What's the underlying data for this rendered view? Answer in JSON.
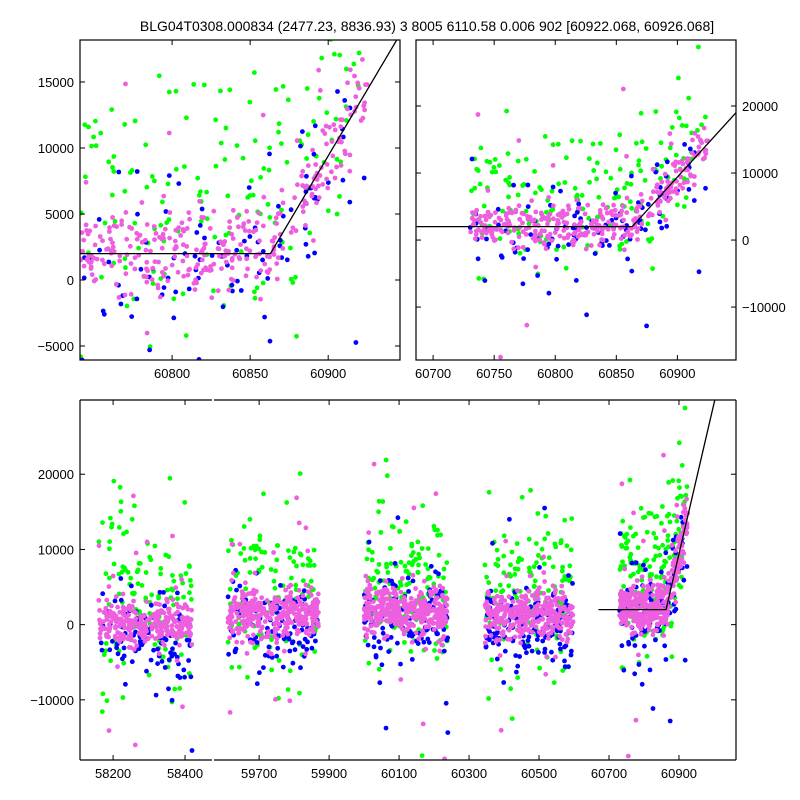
{
  "chart_data": {
    "type": "scatter",
    "title": "BLG04T0308.000834 (2477.23, 8836.93)   3 8005 6110.58 0.006 902 [60922.068, 60926.068]",
    "series_colors": {
      "green": "#00ff00",
      "blue": "#0000ff",
      "violet": "#ee5fdf"
    },
    "model_line": {
      "type": "broken-linear",
      "baseline": 2000,
      "t_break": 60863,
      "slope_per_day": 200
    },
    "seasons": [
      {
        "t_range": [
          58160,
          58420
        ],
        "base": 0,
        "n": 520
      },
      {
        "t_range": [
          59610,
          59870
        ],
        "base": 1500,
        "n": 560
      },
      {
        "t_range": [
          60000,
          60240
        ],
        "base": 1800,
        "n": 620
      },
      {
        "t_range": [
          60345,
          60600
        ],
        "base": 1200,
        "n": 600
      },
      {
        "t_range": [
          60730,
          60925
        ],
        "base": 2000,
        "n": 620,
        "model": true
      }
    ],
    "noise": {
      "violet": {
        "mean": 0,
        "sd": 1600,
        "fraction": 0.55
      },
      "blue": {
        "mean": -1500,
        "sd": 3000,
        "fraction": 0.2
      },
      "green": {
        "mean": 3000,
        "sd": 5500,
        "fraction": 0.25
      }
    },
    "panels": [
      {
        "name": "top-left",
        "xlim": [
          60741,
          60946
        ],
        "ylim": [
          -6060,
          18180
        ],
        "xticks": [
          "60800",
          "60850",
          "60900"
        ],
        "xtick_values": [
          60800,
          60850,
          60900
        ],
        "yticks": [
          "−5000",
          "0",
          "5000",
          "10000",
          "15000"
        ],
        "ytick_values": [
          -5000,
          0,
          5000,
          10000,
          15000
        ],
        "ylabel_side": "left"
      },
      {
        "name": "top-right",
        "xlim": [
          60686,
          60948
        ],
        "ylim": [
          -17900,
          29850
        ],
        "xticks": [
          "60700",
          "60750",
          "60800",
          "60850",
          "60900"
        ],
        "xtick_values": [
          60700,
          60750,
          60800,
          60850,
          60900
        ],
        "yticks": [
          "−10000",
          "0",
          "10000",
          "20000"
        ],
        "ytick_values": [
          -10000,
          0,
          10000,
          20000
        ],
        "ylabel_side": "right"
      },
      {
        "name": "bottom-left-segment",
        "xlim": [
          58108,
          58475
        ],
        "ylim": [
          -18000,
          29870
        ],
        "xticks": [
          "58200",
          "58400"
        ],
        "xtick_values": [
          58200,
          58400
        ],
        "yticks": [
          "−10000",
          "0",
          "10000",
          "20000"
        ],
        "ytick_values": [
          -10000,
          0,
          10000,
          20000
        ],
        "ylabel_side": "left"
      },
      {
        "name": "bottom-right-segment",
        "xlim": [
          59571,
          61063
        ],
        "ylim": [
          -18000,
          29870
        ],
        "xticks": [
          "59700",
          "59900",
          "60100",
          "60300",
          "60500",
          "60700",
          "60900"
        ],
        "xtick_values": [
          59700,
          59900,
          60100,
          60300,
          60500,
          60700,
          60900
        ],
        "yticks": [],
        "ytick_values": [],
        "ylabel_side": "none"
      }
    ]
  }
}
